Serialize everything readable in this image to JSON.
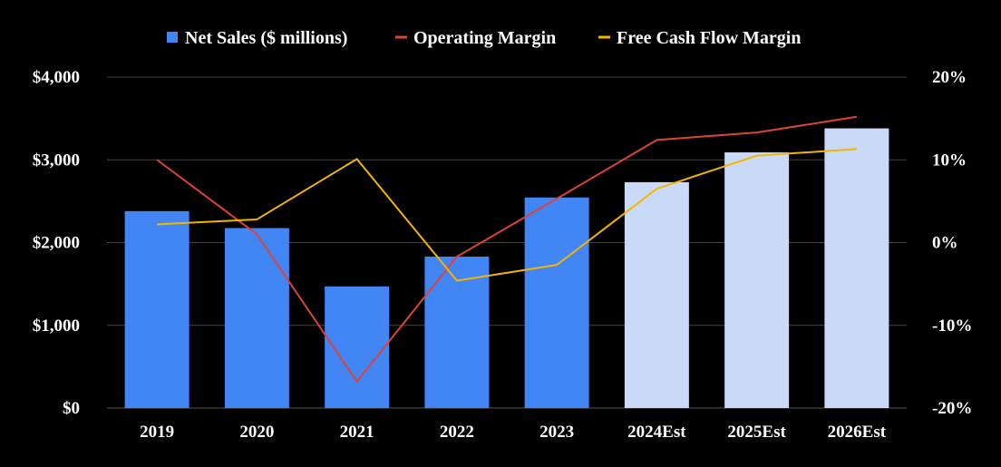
{
  "chart_data": {
    "type": "bar",
    "categories": [
      "2019",
      "2020",
      "2021",
      "2022",
      "2023",
      "2024Est",
      "2025Est",
      "2026Est"
    ],
    "estimate_flags": [
      false,
      false,
      false,
      false,
      false,
      true,
      true,
      true
    ],
    "series": [
      {
        "name": "Net Sales ($ millions)",
        "type": "bar",
        "axis": "left",
        "values": [
          2380,
          2175,
          1470,
          1830,
          2545,
          2730,
          3090,
          3380
        ],
        "color": "#4285f4",
        "estimate_color": "#c9daf8"
      },
      {
        "name": "Operating Margin",
        "type": "line",
        "axis": "right",
        "values": [
          10.0,
          1.0,
          -16.8,
          -1.7,
          5.3,
          12.4,
          13.3,
          15.2
        ],
        "color": "#db4437"
      },
      {
        "name": "Free Cash Flow Margin",
        "type": "line",
        "axis": "right",
        "values": [
          2.2,
          2.8,
          10.1,
          -4.6,
          -2.7,
          6.5,
          10.5,
          11.3
        ],
        "color": "#f4b400"
      }
    ],
    "left_axis": {
      "ylim": [
        0,
        4000
      ],
      "ticks": [
        0,
        1000,
        2000,
        3000,
        4000
      ],
      "tick_labels": [
        "$0",
        "$1,000",
        "$2,000",
        "$3,000",
        "$4,000"
      ]
    },
    "right_axis": {
      "ylim": [
        -20,
        20
      ],
      "ticks": [
        -20,
        -10,
        0,
        10,
        20
      ],
      "tick_labels": [
        "-20%",
        "-10%",
        "0%",
        "10%",
        "20%"
      ]
    },
    "grid": true,
    "legend_position": "top",
    "background": "#000000",
    "grid_color": "#444444",
    "text_color": "#ffffff"
  }
}
